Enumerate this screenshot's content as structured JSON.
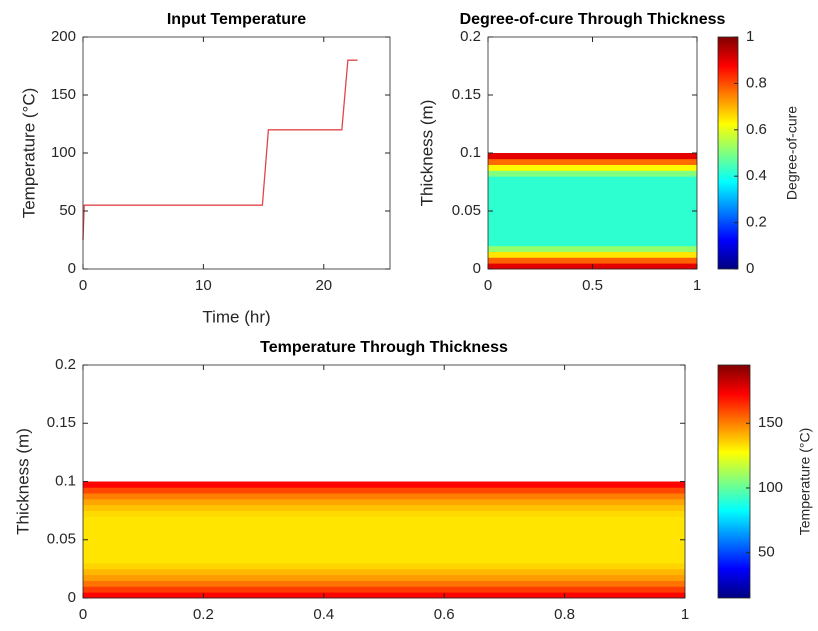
{
  "chart_data": [
    {
      "type": "line",
      "title": "Input Temperature",
      "xlabel": "Time (hr)",
      "ylabel": "Temperature (°C)",
      "x": [
        0,
        0.1,
        14.9,
        15.4,
        21.5,
        22.0,
        22.8
      ],
      "values": [
        25,
        55,
        55,
        120,
        120,
        180,
        180
      ],
      "color": "#e0474c",
      "xlim": [
        0,
        25.5
      ],
      "xticks": [
        0,
        10,
        20
      ],
      "ylim": [
        0,
        200
      ],
      "yticks": [
        0,
        50,
        100,
        150,
        200
      ]
    },
    {
      "type": "heatmap",
      "title": "Degree-of-cure Through Thickness",
      "ylabel": "Thickness (m)",
      "xlim": [
        0,
        1
      ],
      "xticks": [
        0,
        0.5,
        1
      ],
      "ylim": [
        0,
        0.2
      ],
      "yticks": [
        0,
        0.05,
        0.1,
        0.15,
        0.2
      ],
      "y_edges": [
        0,
        0.005,
        0.01,
        0.015,
        0.02,
        0.025,
        0.03,
        0.035,
        0.04,
        0.045,
        0.05,
        0.055,
        0.06,
        0.065,
        0.07,
        0.075,
        0.08,
        0.085,
        0.09,
        0.095,
        0.1
      ],
      "values": [
        0.9,
        0.78,
        0.65,
        0.52,
        0.42,
        0.42,
        0.42,
        0.42,
        0.42,
        0.42,
        0.42,
        0.42,
        0.42,
        0.42,
        0.42,
        0.42,
        0.5,
        0.63,
        0.77,
        0.9
      ],
      "colormap": "jet",
      "clim": [
        0,
        1
      ],
      "colorbar_label": "Degree-of-cure",
      "colorbar_ticks": [
        0,
        0.2,
        0.4,
        0.6,
        0.8,
        1
      ]
    },
    {
      "type": "heatmap",
      "title": "Temperature Through Thickness",
      "ylabel": "Thickness (m)",
      "xlim": [
        0,
        1
      ],
      "xticks": [
        0,
        0.2,
        0.4,
        0.6,
        0.8,
        1
      ],
      "ylim": [
        0,
        0.2
      ],
      "yticks": [
        0,
        0.05,
        0.1,
        0.15,
        0.2
      ],
      "y_edges": [
        0,
        0.005,
        0.01,
        0.015,
        0.02,
        0.025,
        0.03,
        0.035,
        0.04,
        0.045,
        0.05,
        0.055,
        0.06,
        0.065,
        0.07,
        0.075,
        0.08,
        0.085,
        0.09,
        0.095,
        0.1
      ],
      "values": [
        172,
        162,
        152,
        145,
        140,
        135,
        132,
        132,
        132,
        132,
        132,
        132,
        132,
        132,
        134,
        138,
        143,
        150,
        160,
        172
      ],
      "colormap": "jet",
      "clim": [
        15,
        195
      ],
      "colorbar_label": "Temperature (°C)",
      "colorbar_ticks": [
        50,
        100,
        150
      ]
    }
  ]
}
